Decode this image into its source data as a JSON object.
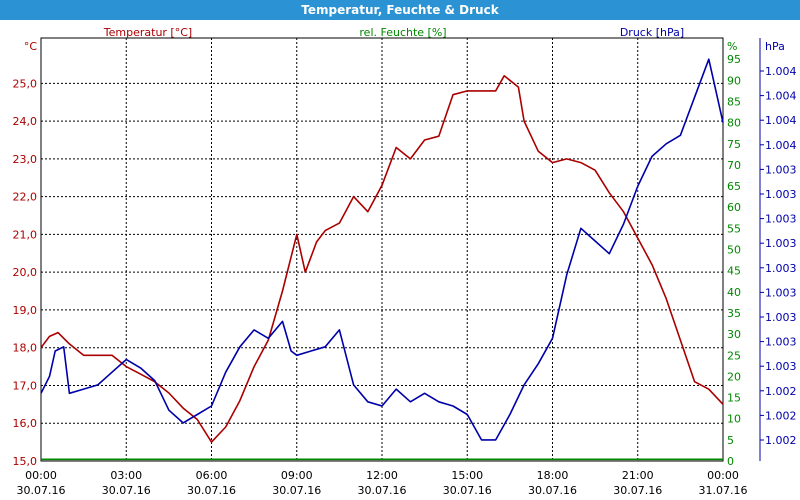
{
  "window": {
    "title": "Temperatur, Feuchte & Druck"
  },
  "chart_data": {
    "type": "line",
    "title": "Temperatur, Feuchte & Druck",
    "x_ticks": [
      {
        "time": "00:00",
        "date": "30.07.16"
      },
      {
        "time": "03:00",
        "date": "30.07.16"
      },
      {
        "time": "06:00",
        "date": "30.07.16"
      },
      {
        "time": "09:00",
        "date": "30.07.16"
      },
      {
        "time": "12:00",
        "date": "30.07.16"
      },
      {
        "time": "15:00",
        "date": "30.07.16"
      },
      {
        "time": "18:00",
        "date": "30.07.16"
      },
      {
        "time": "21:00",
        "date": "30.07.16"
      },
      {
        "time": "00:00",
        "date": "31.07.16"
      }
    ],
    "x_range_hours": [
      0,
      24
    ],
    "axes": {
      "temperature": {
        "legend": "Temperatur [°C]",
        "unit": "°C",
        "range": [
          15.0,
          26.2
        ],
        "ticks": [
          "15,0",
          "16,0",
          "17,0",
          "18,0",
          "19,0",
          "20,0",
          "21,0",
          "22,0",
          "23,0",
          "24,0",
          "25,0"
        ],
        "color": "#aa0000"
      },
      "humidity": {
        "legend": "rel. Feuchte [%]",
        "unit": "%",
        "range": [
          0,
          100
        ],
        "ticks": [
          "0",
          "5",
          "10",
          "15",
          "20",
          "25",
          "30",
          "35",
          "40",
          "45",
          "50",
          "55",
          "60",
          "65",
          "70",
          "75",
          "80",
          "85",
          "90",
          "95"
        ],
        "color": "#008800"
      },
      "pressure": {
        "legend": "Druck [hPa]",
        "unit": "hPa",
        "ticks": [
          "1.002",
          "1.002",
          "1.002",
          "1.003",
          "1.003",
          "1.003",
          "1.003",
          "1.003",
          "1.003",
          "1.003",
          "1.003",
          "1.003",
          "1.004",
          "1.004",
          "1.004",
          "1.004"
        ],
        "color": "#0000aa"
      }
    },
    "grid": true,
    "legend_placement": "top",
    "series": [
      {
        "name": "Temperatur [°C]",
        "axis": "temperature",
        "color": "#aa0000",
        "points": [
          [
            0,
            18.0
          ],
          [
            0.3,
            18.3
          ],
          [
            0.6,
            18.4
          ],
          [
            1.0,
            18.1
          ],
          [
            1.5,
            17.8
          ],
          [
            2.0,
            17.8
          ],
          [
            2.5,
            17.8
          ],
          [
            3.0,
            17.5
          ],
          [
            3.5,
            17.3
          ],
          [
            4.0,
            17.1
          ],
          [
            4.5,
            16.8
          ],
          [
            5.0,
            16.4
          ],
          [
            5.5,
            16.1
          ],
          [
            6.0,
            15.5
          ],
          [
            6.5,
            15.9
          ],
          [
            7.0,
            16.6
          ],
          [
            7.5,
            17.5
          ],
          [
            8.0,
            18.2
          ],
          [
            8.5,
            19.5
          ],
          [
            9.0,
            21.0
          ],
          [
            9.3,
            20.0
          ],
          [
            9.7,
            20.8
          ],
          [
            10.0,
            21.1
          ],
          [
            10.5,
            21.3
          ],
          [
            11.0,
            22.0
          ],
          [
            11.5,
            21.6
          ],
          [
            12.0,
            22.3
          ],
          [
            12.5,
            23.3
          ],
          [
            13.0,
            23.0
          ],
          [
            13.5,
            23.5
          ],
          [
            14.0,
            23.6
          ],
          [
            14.5,
            24.7
          ],
          [
            15.0,
            24.8
          ],
          [
            15.5,
            24.8
          ],
          [
            16.0,
            24.8
          ],
          [
            16.3,
            25.2
          ],
          [
            16.8,
            24.9
          ],
          [
            17.0,
            24.0
          ],
          [
            17.5,
            23.2
          ],
          [
            18.0,
            22.9
          ],
          [
            18.5,
            23.0
          ],
          [
            19.0,
            22.9
          ],
          [
            19.5,
            22.7
          ],
          [
            20.0,
            22.1
          ],
          [
            20.5,
            21.6
          ],
          [
            21.0,
            20.9
          ],
          [
            21.5,
            20.2
          ],
          [
            22.0,
            19.3
          ],
          [
            22.5,
            18.2
          ],
          [
            23.0,
            17.1
          ],
          [
            23.5,
            16.9
          ],
          [
            24.0,
            16.5
          ]
        ]
      },
      {
        "name": "rel. Feuchte [%]",
        "axis": "humidity",
        "color": "#008800",
        "points": [
          [
            0,
            0.4
          ],
          [
            24,
            0.4
          ]
        ]
      },
      {
        "name": "Druck [hPa]",
        "axis": "pressure_rel",
        "color": "#0000aa",
        "points": [
          [
            0,
            16
          ],
          [
            0.3,
            20
          ],
          [
            0.5,
            26
          ],
          [
            0.8,
            27
          ],
          [
            1.0,
            16
          ],
          [
            1.5,
            17
          ],
          [
            2.0,
            18
          ],
          [
            2.5,
            21
          ],
          [
            3.0,
            24
          ],
          [
            3.5,
            22
          ],
          [
            4.0,
            19
          ],
          [
            4.5,
            12
          ],
          [
            5.0,
            9
          ],
          [
            5.5,
            11
          ],
          [
            6.0,
            13
          ],
          [
            6.5,
            21
          ],
          [
            7.0,
            27
          ],
          [
            7.5,
            31
          ],
          [
            8.0,
            29
          ],
          [
            8.5,
            33
          ],
          [
            8.8,
            26
          ],
          [
            9.0,
            25
          ],
          [
            9.5,
            26
          ],
          [
            10.0,
            27
          ],
          [
            10.5,
            31
          ],
          [
            11.0,
            18
          ],
          [
            11.5,
            14
          ],
          [
            12.0,
            13
          ],
          [
            12.5,
            17
          ],
          [
            13.0,
            14
          ],
          [
            13.5,
            16
          ],
          [
            14.0,
            14
          ],
          [
            14.5,
            13
          ],
          [
            15.0,
            11
          ],
          [
            15.5,
            5
          ],
          [
            16.0,
            5
          ],
          [
            16.5,
            11
          ],
          [
            17.0,
            18
          ],
          [
            17.5,
            23
          ],
          [
            18.0,
            29
          ],
          [
            18.5,
            44
          ],
          [
            19.0,
            55
          ],
          [
            19.5,
            52
          ],
          [
            20.0,
            49
          ],
          [
            20.5,
            56
          ],
          [
            21.0,
            65
          ],
          [
            21.5,
            72
          ],
          [
            22.0,
            75
          ],
          [
            22.5,
            77
          ],
          [
            23.0,
            86
          ],
          [
            23.5,
            95
          ],
          [
            24.0,
            80
          ]
        ]
      }
    ]
  }
}
